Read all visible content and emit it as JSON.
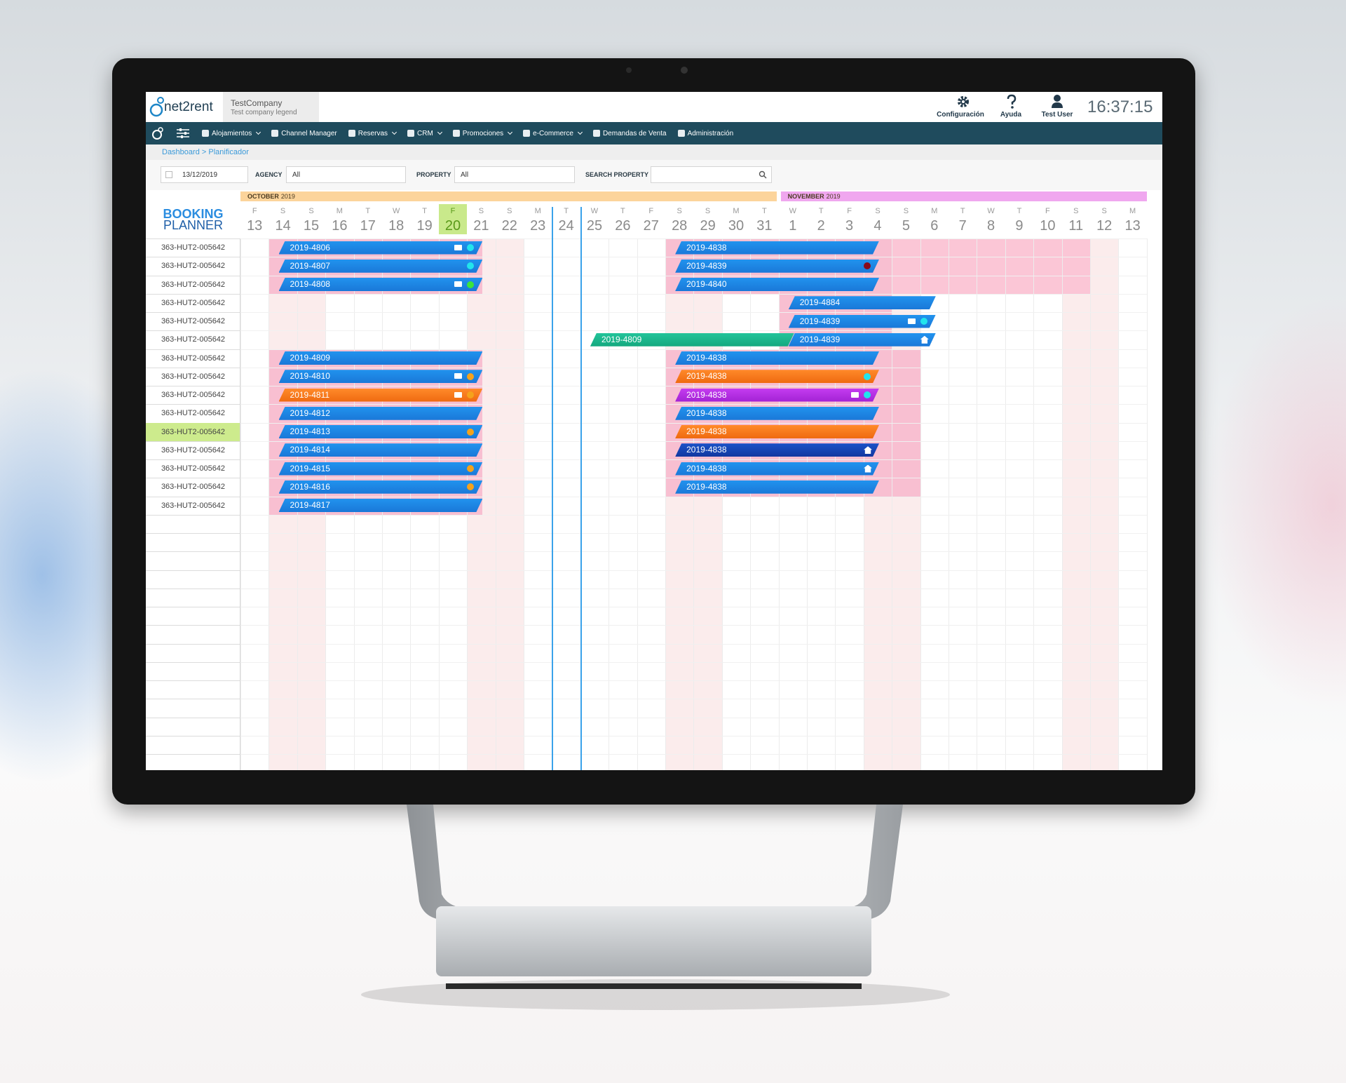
{
  "header": {
    "logo": "net2rent",
    "company": "TestCompany",
    "legend": "Test company legend",
    "actions": [
      "Configuración",
      "Ayuda",
      "Test User"
    ],
    "clock": "16:37:15"
  },
  "nav": [
    "Alojamientos",
    "Channel Manager",
    "Reservas",
    "CRM",
    "Promociones",
    "e-Commerce",
    "Demandas de Venta",
    "Administración"
  ],
  "breadcrumb": {
    "home": "Dashboard",
    "separator": ">",
    "current": "Planificador"
  },
  "filters": {
    "date": "13/12/2019",
    "agency_label": "AGENCY",
    "agency": "All",
    "property_label": "PROPERTY",
    "property": "All",
    "search_label": "SEARCH PROPERTY"
  },
  "planner": {
    "title": [
      "BOOKING",
      "PLANNER"
    ],
    "months": [
      {
        "name": "OCTOBER",
        "year": "2019"
      },
      {
        "name": "NOVEMBER",
        "year": "2019"
      }
    ],
    "days": [
      {
        "dow": "F",
        "day": 13
      },
      {
        "dow": "S",
        "day": 14
      },
      {
        "dow": "S",
        "day": 15
      },
      {
        "dow": "M",
        "day": 16
      },
      {
        "dow": "T",
        "day": 17
      },
      {
        "dow": "W",
        "day": 18
      },
      {
        "dow": "T",
        "day": 19
      },
      {
        "dow": "F",
        "day": 20
      },
      {
        "dow": "S",
        "day": 21
      },
      {
        "dow": "S",
        "day": 22
      },
      {
        "dow": "M",
        "day": 23
      },
      {
        "dow": "T",
        "day": 24
      },
      {
        "dow": "W",
        "day": 25
      },
      {
        "dow": "T",
        "day": 26
      },
      {
        "dow": "F",
        "day": 27
      },
      {
        "dow": "S",
        "day": 28
      },
      {
        "dow": "S",
        "day": 29
      },
      {
        "dow": "M",
        "day": 30
      },
      {
        "dow": "T",
        "day": 31
      },
      {
        "dow": "W",
        "day": 1
      },
      {
        "dow": "T",
        "day": 2
      },
      {
        "dow": "F",
        "day": 3
      },
      {
        "dow": "S",
        "day": 4
      },
      {
        "dow": "S",
        "day": 5
      },
      {
        "dow": "M",
        "day": 6
      },
      {
        "dow": "T",
        "day": 7
      },
      {
        "dow": "W",
        "day": 8
      },
      {
        "dow": "T",
        "day": 9
      },
      {
        "dow": "F",
        "day": 10
      },
      {
        "dow": "S",
        "day": 11
      },
      {
        "dow": "S",
        "day": 12
      },
      {
        "dow": "M",
        "day": 13
      }
    ],
    "rows": [
      "363-HUT2-005642",
      "363-HUT2-005642",
      "363-HUT2-005642",
      "363-HUT2-005642",
      "363-HUT2-005642",
      "363-HUT2-005642",
      "363-HUT2-005642",
      "363-HUT2-005642",
      "363-HUT2-005642",
      "363-HUT2-005642",
      "363-HUT2-005642",
      "363-HUT2-005642",
      "363-HUT2-005642",
      "363-HUT2-005642",
      "363-HUT2-005642"
    ],
    "bookings": [
      "2019-4806",
      "2019-4838",
      "2019-4807",
      "2019-4839",
      "2019-4808",
      "2019-4840",
      "2019-4884",
      "2019-4839",
      "2019-4809",
      "2019-4839",
      "2019-4809",
      "2019-4838",
      "2019-4810",
      "2019-4838",
      "2019-4811",
      "2019-4838",
      "2019-4812",
      "2019-4838",
      "2019-4813",
      "2019-4838",
      "2019-4814",
      "2019-4838",
      "2019-4815",
      "2019-4838",
      "2019-4816",
      "2019-4838",
      "2019-4817"
    ]
  }
}
